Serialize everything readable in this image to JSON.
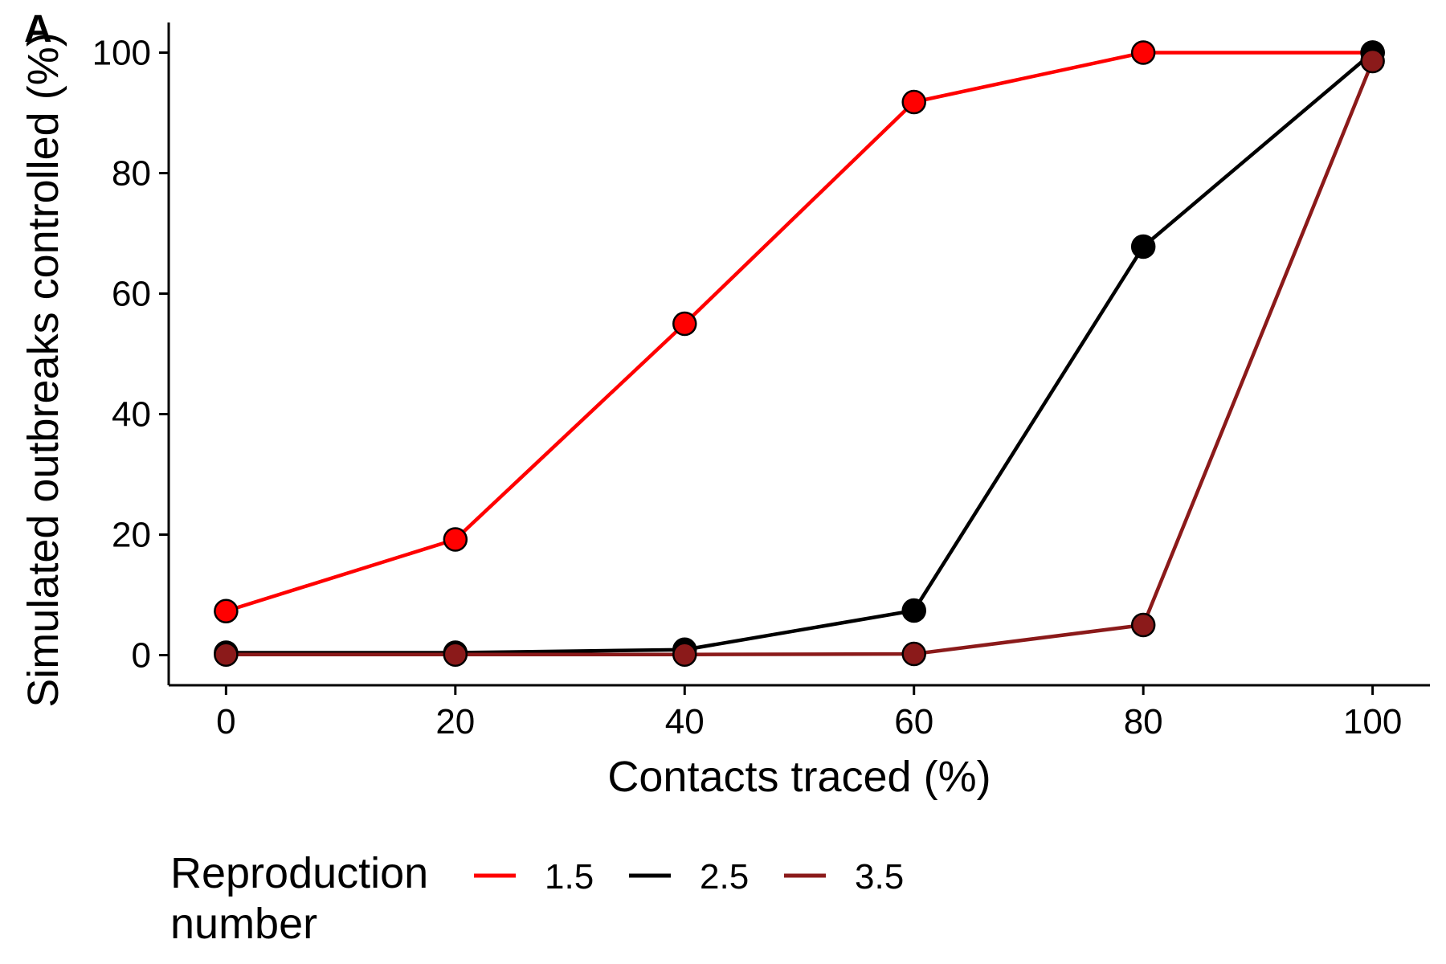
{
  "panel_tag": "A",
  "chart_data": {
    "type": "line",
    "title": "",
    "xlabel": "Contacts traced (%)",
    "ylabel": "Simulated outbreaks controlled (%)",
    "x": [
      0,
      20,
      40,
      60,
      80,
      100
    ],
    "xlim": [
      -5,
      105
    ],
    "ylim": [
      -5,
      105
    ],
    "xticks": [
      0,
      20,
      40,
      60,
      80,
      100
    ],
    "yticks": [
      0,
      20,
      40,
      60,
      80,
      100
    ],
    "grid": false,
    "legend_position": "bottom",
    "legend_title_lines": [
      "Reproduction",
      "number"
    ],
    "series": [
      {
        "name": "1.5",
        "color": "#ff0000",
        "values": [
          7.3,
          19.2,
          55.0,
          91.8,
          100.0,
          100.0
        ]
      },
      {
        "name": "2.5",
        "color": "#000000",
        "values": [
          0.4,
          0.4,
          0.9,
          7.4,
          67.8,
          100.0
        ]
      },
      {
        "name": "3.5",
        "color": "#8b1a1a",
        "values": [
          0.1,
          0.1,
          0.1,
          0.2,
          5.0,
          98.6
        ]
      }
    ]
  }
}
